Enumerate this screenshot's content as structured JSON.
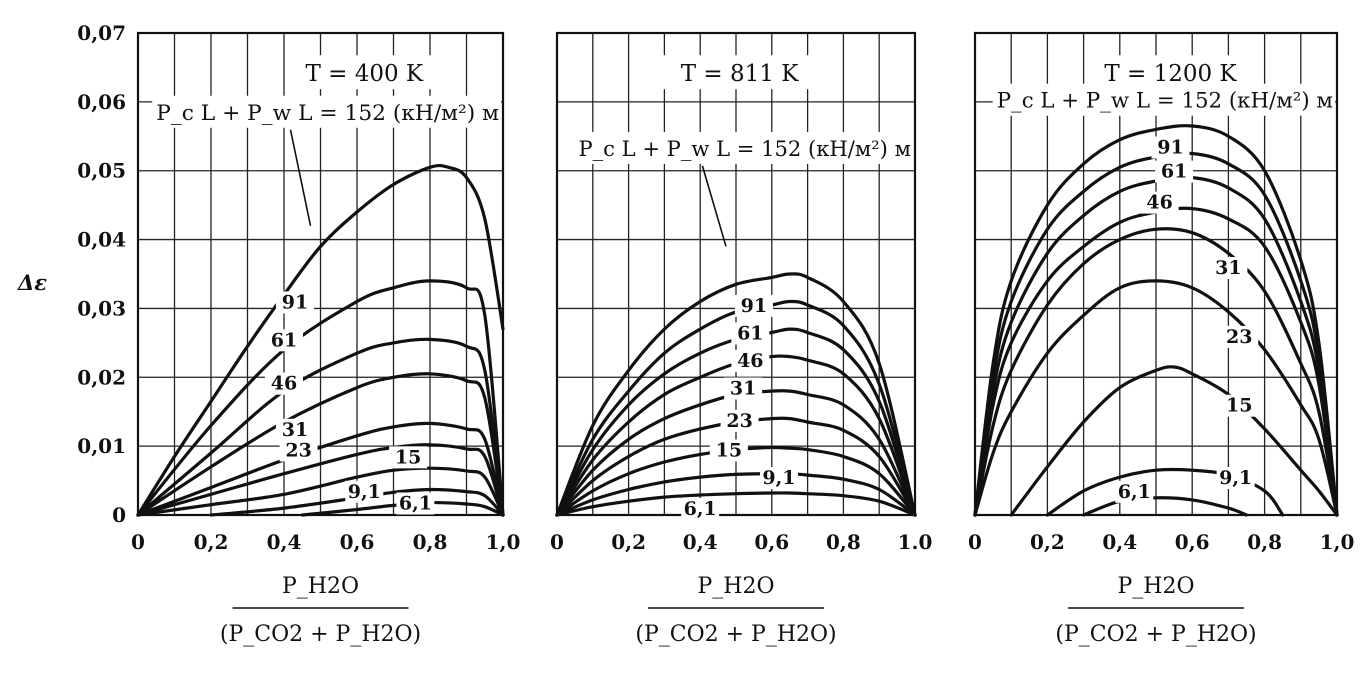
{
  "chart_data": [
    {
      "type": "line",
      "title": "T = 400 K",
      "ylabel": "Δε",
      "xlabel": "P_H2O / (P_CO2 + P_H2O)",
      "param_label": "P_c L + P_w L = 152 (кН/м²) м",
      "xlim": [
        0,
        1.0
      ],
      "ylim": [
        0,
        0.07
      ],
      "x_ticks": [
        "0",
        "0,2",
        "0,4",
        "0,6",
        "0,8",
        "1,0"
      ],
      "y_ticks": [
        "0",
        "0,01",
        "0,02",
        "0,03",
        "0,04",
        "0,05",
        "0,06",
        "0,07"
      ],
      "grid": true,
      "series": [
        {
          "name": "152",
          "x": [
            0,
            0.1,
            0.2,
            0.3,
            0.4,
            0.5,
            0.6,
            0.7,
            0.8,
            0.85,
            0.9,
            0.95,
            1.0
          ],
          "y": [
            0,
            0.0085,
            0.0165,
            0.0245,
            0.032,
            0.039,
            0.044,
            0.048,
            0.0505,
            0.0505,
            0.049,
            0.043,
            0.027
          ]
        },
        {
          "name": "91",
          "x": [
            0,
            0.2,
            0.4,
            0.6,
            0.7,
            0.8,
            0.9,
            0.95,
            1.0
          ],
          "y": [
            0,
            0.013,
            0.024,
            0.031,
            0.033,
            0.034,
            0.033,
            0.029,
            0.0
          ]
        },
        {
          "name": "61",
          "x": [
            0,
            0.2,
            0.4,
            0.6,
            0.7,
            0.8,
            0.9,
            0.95,
            1.0
          ],
          "y": [
            0,
            0.009,
            0.018,
            0.0235,
            0.025,
            0.0255,
            0.0245,
            0.021,
            0.0
          ]
        },
        {
          "name": "46",
          "x": [
            0,
            0.2,
            0.4,
            0.6,
            0.7,
            0.8,
            0.9,
            0.95,
            1.0
          ],
          "y": [
            0,
            0.007,
            0.0135,
            0.0185,
            0.02,
            0.0205,
            0.0195,
            0.017,
            0.0
          ]
        },
        {
          "name": "31",
          "x": [
            0,
            0.2,
            0.4,
            0.6,
            0.7,
            0.8,
            0.9,
            0.95,
            1.0
          ],
          "y": [
            0,
            0.004,
            0.008,
            0.0115,
            0.0128,
            0.0133,
            0.0125,
            0.011,
            0.0
          ]
        },
        {
          "name": "23",
          "x": [
            0,
            0.2,
            0.4,
            0.6,
            0.7,
            0.8,
            0.9,
            0.95,
            1.0
          ],
          "y": [
            0,
            0.003,
            0.006,
            0.0088,
            0.0098,
            0.0102,
            0.0096,
            0.0085,
            0.0
          ]
        },
        {
          "name": "15",
          "x": [
            0,
            0.2,
            0.4,
            0.6,
            0.7,
            0.8,
            0.9,
            0.95,
            1.0
          ],
          "y": [
            0,
            0.0015,
            0.003,
            0.0055,
            0.0065,
            0.0068,
            0.0064,
            0.0055,
            0.0
          ]
        },
        {
          "name": "9,1",
          "x": [
            0.2,
            0.4,
            0.6,
            0.7,
            0.8,
            0.9,
            0.95,
            1.0
          ],
          "y": [
            0,
            0.001,
            0.0025,
            0.0033,
            0.0037,
            0.0034,
            0.0028,
            0.0
          ]
        },
        {
          "name": "6,1",
          "x": [
            0.45,
            0.6,
            0.7,
            0.8,
            0.9,
            0.95,
            1.0
          ],
          "y": [
            0,
            0.0008,
            0.0014,
            0.0018,
            0.0016,
            0.0012,
            0.0
          ]
        }
      ]
    },
    {
      "type": "line",
      "title": "T = 811 K",
      "xlabel": "P_H2O / (P_CO2 + P_H2O)",
      "param_label": "P_c L + P_w L = 152 (кН/м²) м",
      "xlim": [
        0,
        1.0
      ],
      "ylim": [
        0,
        0.07
      ],
      "x_ticks": [
        "0",
        "0,2",
        "0,4",
        "0,6",
        "0,8",
        "1.0"
      ],
      "grid": true,
      "series": [
        {
          "name": "152",
          "x": [
            0,
            0.1,
            0.2,
            0.3,
            0.4,
            0.5,
            0.6,
            0.65,
            0.7,
            0.8,
            0.9,
            1.0
          ],
          "y": [
            0,
            0.013,
            0.021,
            0.027,
            0.031,
            0.0335,
            0.0345,
            0.035,
            0.0345,
            0.031,
            0.022,
            0.0
          ]
        },
        {
          "name": "91",
          "x": [
            0,
            0.1,
            0.2,
            0.3,
            0.4,
            0.5,
            0.6,
            0.65,
            0.7,
            0.8,
            0.9,
            1.0
          ],
          "y": [
            0,
            0.011,
            0.018,
            0.0235,
            0.027,
            0.0295,
            0.0305,
            0.031,
            0.0305,
            0.0275,
            0.019,
            0.0
          ]
        },
        {
          "name": "61",
          "x": [
            0,
            0.1,
            0.2,
            0.3,
            0.4,
            0.5,
            0.6,
            0.65,
            0.7,
            0.8,
            0.9,
            1.0
          ],
          "y": [
            0,
            0.0095,
            0.016,
            0.0205,
            0.0235,
            0.0255,
            0.0265,
            0.027,
            0.0265,
            0.024,
            0.0165,
            0.0
          ]
        },
        {
          "name": "46",
          "x": [
            0,
            0.1,
            0.2,
            0.3,
            0.4,
            0.5,
            0.6,
            0.65,
            0.7,
            0.8,
            0.9,
            1.0
          ],
          "y": [
            0,
            0.008,
            0.0135,
            0.0175,
            0.02,
            0.022,
            0.023,
            0.023,
            0.0225,
            0.0205,
            0.014,
            0.0
          ]
        },
        {
          "name": "31",
          "x": [
            0,
            0.1,
            0.2,
            0.3,
            0.4,
            0.5,
            0.6,
            0.65,
            0.7,
            0.8,
            0.9,
            1.0
          ],
          "y": [
            0,
            0.0065,
            0.011,
            0.014,
            0.016,
            0.0175,
            0.018,
            0.018,
            0.0175,
            0.016,
            0.011,
            0.0
          ]
        },
        {
          "name": "23",
          "x": [
            0,
            0.1,
            0.2,
            0.3,
            0.4,
            0.5,
            0.6,
            0.65,
            0.7,
            0.8,
            0.9,
            1.0
          ],
          "y": [
            0,
            0.005,
            0.0085,
            0.011,
            0.0125,
            0.0135,
            0.014,
            0.014,
            0.0135,
            0.0123,
            0.0085,
            0.0
          ]
        },
        {
          "name": "15",
          "x": [
            0,
            0.1,
            0.2,
            0.3,
            0.4,
            0.5,
            0.6,
            0.65,
            0.7,
            0.8,
            0.9,
            1.0
          ],
          "y": [
            0,
            0.0035,
            0.006,
            0.0077,
            0.0088,
            0.0095,
            0.0098,
            0.0097,
            0.0095,
            0.0085,
            0.006,
            0.0
          ]
        },
        {
          "name": "9,1",
          "x": [
            0,
            0.1,
            0.2,
            0.3,
            0.4,
            0.5,
            0.6,
            0.65,
            0.7,
            0.8,
            0.9,
            1.0
          ],
          "y": [
            0,
            0.0022,
            0.0037,
            0.0048,
            0.0055,
            0.0059,
            0.006,
            0.006,
            0.0058,
            0.0052,
            0.0037,
            0.0
          ]
        },
        {
          "name": "6,1",
          "x": [
            0,
            0.1,
            0.2,
            0.3,
            0.4,
            0.5,
            0.6,
            0.65,
            0.7,
            0.8,
            0.9,
            1.0
          ],
          "y": [
            0,
            0.0012,
            0.002,
            0.0026,
            0.0029,
            0.0031,
            0.0032,
            0.0032,
            0.0031,
            0.0028,
            0.002,
            0.0
          ]
        }
      ]
    },
    {
      "type": "line",
      "title": "T = 1200 K",
      "xlabel": "P_H2O / (P_CO2 + P_H2O)",
      "param_label": "P_c L + P_w L = 152 (кН/м²) м",
      "xlim": [
        0,
        1.0
      ],
      "ylim": [
        0,
        0.07
      ],
      "x_ticks": [
        "0",
        "0,2",
        "0,4",
        "0,6",
        "0,8",
        "1,0"
      ],
      "grid": true,
      "series": [
        {
          "name": "152",
          "x": [
            0,
            0.05,
            0.1,
            0.2,
            0.3,
            0.4,
            0.5,
            0.6,
            0.7,
            0.8,
            0.9,
            0.95,
            1.0
          ],
          "y": [
            0,
            0.022,
            0.034,
            0.045,
            0.051,
            0.0545,
            0.056,
            0.0565,
            0.055,
            0.05,
            0.037,
            0.025,
            0.0
          ]
        },
        {
          "name": "91",
          "x": [
            0,
            0.05,
            0.1,
            0.2,
            0.3,
            0.4,
            0.5,
            0.6,
            0.7,
            0.8,
            0.9,
            0.95,
            1.0
          ],
          "y": [
            0,
            0.02,
            0.031,
            0.0415,
            0.047,
            0.0505,
            0.052,
            0.0525,
            0.051,
            0.0465,
            0.034,
            0.023,
            0.0
          ]
        },
        {
          "name": "61",
          "x": [
            0,
            0.05,
            0.1,
            0.2,
            0.3,
            0.4,
            0.5,
            0.6,
            0.7,
            0.8,
            0.9,
            0.95,
            1.0
          ],
          "y": [
            0,
            0.018,
            0.028,
            0.038,
            0.0435,
            0.047,
            0.0485,
            0.049,
            0.0475,
            0.043,
            0.031,
            0.021,
            0.0
          ]
        },
        {
          "name": "46",
          "x": [
            0,
            0.05,
            0.1,
            0.2,
            0.3,
            0.4,
            0.5,
            0.6,
            0.7,
            0.8,
            0.9,
            0.95,
            1.0
          ],
          "y": [
            0,
            0.016,
            0.025,
            0.034,
            0.039,
            0.0425,
            0.044,
            0.0445,
            0.043,
            0.039,
            0.028,
            0.019,
            0.0
          ]
        },
        {
          "name": "31",
          "x": [
            0,
            0.05,
            0.1,
            0.2,
            0.3,
            0.4,
            0.5,
            0.6,
            0.7,
            0.8,
            0.9,
            0.95,
            1.0
          ],
          "y": [
            0,
            0.013,
            0.021,
            0.0305,
            0.0365,
            0.04,
            0.0415,
            0.041,
            0.038,
            0.0325,
            0.022,
            0.015,
            0.0
          ]
        },
        {
          "name": "23",
          "x": [
            0,
            0.05,
            0.1,
            0.2,
            0.3,
            0.4,
            0.5,
            0.6,
            0.7,
            0.8,
            0.9,
            0.95,
            1.0
          ],
          "y": [
            0,
            0.009,
            0.015,
            0.0235,
            0.029,
            0.033,
            0.034,
            0.033,
            0.0295,
            0.024,
            0.016,
            0.011,
            0.0
          ]
        },
        {
          "name": "15",
          "x": [
            0.1,
            0.2,
            0.3,
            0.4,
            0.5,
            0.55,
            0.6,
            0.7,
            0.8,
            0.9,
            0.95,
            1.0
          ],
          "y": [
            0,
            0.007,
            0.0135,
            0.0185,
            0.021,
            0.0215,
            0.0205,
            0.0175,
            0.0125,
            0.0065,
            0.0035,
            0.0
          ]
        },
        {
          "name": "9,1",
          "x": [
            0.2,
            0.3,
            0.4,
            0.5,
            0.6,
            0.7,
            0.8,
            0.85
          ],
          "y": [
            0,
            0.0035,
            0.0055,
            0.0065,
            0.0065,
            0.0058,
            0.0035,
            0.0
          ]
        },
        {
          "name": "6,1",
          "x": [
            0.3,
            0.4,
            0.5,
            0.6,
            0.7,
            0.75
          ],
          "y": [
            0,
            0.002,
            0.0025,
            0.0022,
            0.001,
            0.0
          ]
        }
      ]
    }
  ]
}
